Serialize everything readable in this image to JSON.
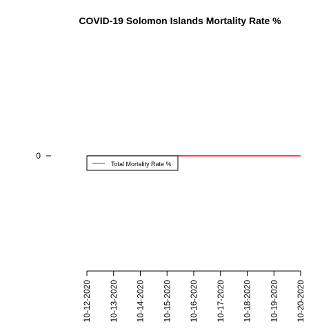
{
  "chart_data": {
    "type": "line",
    "title": "COVID-19 Solomon Islands Mortality Rate %",
    "xlabel": "",
    "ylabel": "",
    "x": [
      "10-12-2020",
      "10-13-2020",
      "10-14-2020",
      "10-15-2020",
      "10-16-2020",
      "10-17-2020",
      "10-18-2020",
      "10-19-2020",
      "10-20-2020"
    ],
    "y_ticks": [
      "0"
    ],
    "series": [
      {
        "name": "Total Mortality Rate %",
        "color": "#ff0000",
        "values": [
          0,
          0,
          0,
          0,
          0,
          0,
          0,
          0,
          0
        ]
      }
    ],
    "legend_position": "top-left",
    "grid": false
  }
}
